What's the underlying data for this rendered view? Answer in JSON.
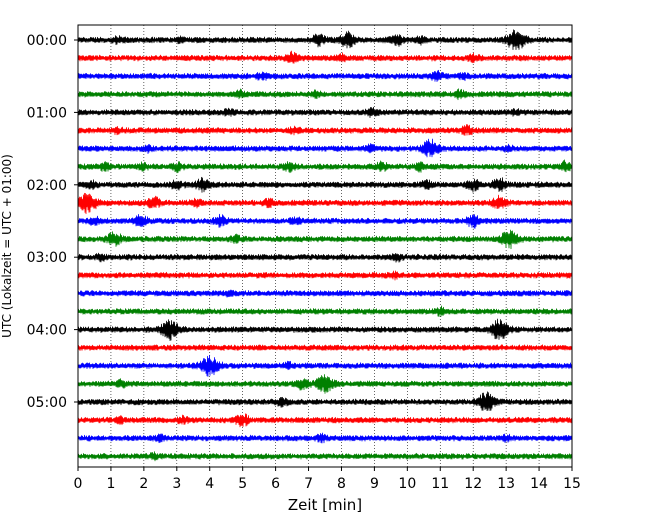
{
  "chart_data": {
    "type": "line",
    "title": "",
    "xlabel": "Zeit  [min]",
    "ylabel": "UTC (Lokalzeit = UTC + 01:00)",
    "xlim": [
      0,
      15
    ],
    "xticks": [
      0,
      1,
      2,
      3,
      4,
      5,
      6,
      7,
      8,
      9,
      10,
      11,
      12,
      13,
      14,
      15
    ],
    "xtick_labels": [
      "0",
      "1",
      "2",
      "3",
      "4",
      "5",
      "6",
      "7",
      "8",
      "9",
      "10",
      "11",
      "12",
      "13",
      "14",
      "15"
    ],
    "ytick_labels": [
      "00:00",
      "01:00",
      "02:00",
      "03:00",
      "04:00",
      "05:00"
    ],
    "ytick_rows": [
      0,
      4,
      8,
      12,
      16,
      20
    ],
    "row_minutes": 15,
    "grid": "vertical dotted",
    "colors": [
      "#000000",
      "#ff0000",
      "#0000ff",
      "#008000"
    ],
    "series": [
      {
        "start": "00:00",
        "color": "#000000",
        "events": [
          [
            1.2,
            0.25
          ],
          [
            3.1,
            0.15
          ],
          [
            7.3,
            0.45
          ],
          [
            8.2,
            0.65
          ],
          [
            9.7,
            0.4
          ],
          [
            10.4,
            0.25
          ],
          [
            13.3,
            0.9
          ]
        ]
      },
      {
        "start": "00:15",
        "color": "#ff0000",
        "events": [
          [
            6.5,
            0.45
          ],
          [
            8.0,
            0.25
          ],
          [
            12.0,
            0.3
          ]
        ]
      },
      {
        "start": "00:30",
        "color": "#0000ff",
        "events": [
          [
            5.6,
            0.25
          ],
          [
            10.9,
            0.35
          ],
          [
            11.7,
            0.2
          ]
        ]
      },
      {
        "start": "00:45",
        "color": "#008000",
        "events": [
          [
            4.9,
            0.25
          ],
          [
            7.2,
            0.2
          ],
          [
            11.6,
            0.3
          ]
        ]
      },
      {
        "start": "01:00",
        "color": "#000000",
        "events": [
          [
            4.6,
            0.25
          ],
          [
            8.9,
            0.3
          ],
          [
            13.3,
            0.15
          ]
        ]
      },
      {
        "start": "01:15",
        "color": "#ff0000",
        "events": [
          [
            1.2,
            0.2
          ],
          [
            6.6,
            0.25
          ],
          [
            11.8,
            0.35
          ]
        ]
      },
      {
        "start": "01:30",
        "color": "#0000ff",
        "events": [
          [
            2.1,
            0.25
          ],
          [
            8.9,
            0.25
          ],
          [
            10.7,
            0.75
          ],
          [
            13.1,
            0.2
          ]
        ]
      },
      {
        "start": "01:45",
        "color": "#008000",
        "events": [
          [
            0.8,
            0.3
          ],
          [
            2.0,
            0.25
          ],
          [
            3.0,
            0.35
          ],
          [
            6.4,
            0.35
          ],
          [
            9.2,
            0.35
          ],
          [
            10.4,
            0.3
          ],
          [
            14.8,
            0.4
          ]
        ]
      },
      {
        "start": "02:00",
        "color": "#000000",
        "events": [
          [
            0.4,
            0.25
          ],
          [
            3.0,
            0.35
          ],
          [
            3.8,
            0.5
          ],
          [
            10.6,
            0.3
          ],
          [
            12.0,
            0.45
          ],
          [
            12.8,
            0.55
          ]
        ]
      },
      {
        "start": "02:15",
        "color": "#ff0000",
        "events": [
          [
            0.3,
            0.85
          ],
          [
            2.3,
            0.45
          ],
          [
            3.6,
            0.3
          ],
          [
            5.8,
            0.3
          ],
          [
            12.8,
            0.5
          ]
        ]
      },
      {
        "start": "02:30",
        "color": "#0000ff",
        "events": [
          [
            0.5,
            0.3
          ],
          [
            1.9,
            0.45
          ],
          [
            4.3,
            0.45
          ],
          [
            6.6,
            0.3
          ],
          [
            12.0,
            0.5
          ]
        ]
      },
      {
        "start": "02:45",
        "color": "#008000",
        "events": [
          [
            1.1,
            0.55
          ],
          [
            4.8,
            0.25
          ],
          [
            13.1,
            0.75
          ]
        ]
      },
      {
        "start": "03:00",
        "color": "#000000",
        "events": [
          [
            0.7,
            0.2
          ],
          [
            9.7,
            0.25
          ]
        ]
      },
      {
        "start": "03:15",
        "color": "#ff0000",
        "events": [
          [
            9.6,
            0.2
          ]
        ]
      },
      {
        "start": "03:30",
        "color": "#0000ff",
        "events": [
          [
            4.6,
            0.15
          ]
        ]
      },
      {
        "start": "03:45",
        "color": "#008000",
        "events": [
          [
            11.0,
            0.3
          ]
        ]
      },
      {
        "start": "04:00",
        "color": "#000000",
        "events": [
          [
            2.8,
            0.85
          ],
          [
            12.8,
            0.85
          ]
        ]
      },
      {
        "start": "04:15",
        "color": "#ff0000",
        "events": []
      },
      {
        "start": "04:30",
        "color": "#0000ff",
        "events": [
          [
            4.0,
            0.85
          ],
          [
            6.4,
            0.2
          ]
        ]
      },
      {
        "start": "04:45",
        "color": "#008000",
        "events": [
          [
            1.3,
            0.25
          ],
          [
            6.8,
            0.4
          ],
          [
            7.5,
            0.75
          ]
        ]
      },
      {
        "start": "05:00",
        "color": "#000000",
        "events": [
          [
            6.2,
            0.3
          ],
          [
            12.4,
            0.8
          ]
        ]
      },
      {
        "start": "05:15",
        "color": "#ff0000",
        "events": [
          [
            1.3,
            0.2
          ],
          [
            3.2,
            0.25
          ],
          [
            5.0,
            0.5
          ]
        ]
      },
      {
        "start": "05:30",
        "color": "#0000ff",
        "events": [
          [
            2.5,
            0.2
          ],
          [
            7.4,
            0.25
          ],
          [
            13.0,
            0.2
          ]
        ]
      },
      {
        "start": "05:45",
        "color": "#008000",
        "events": [
          [
            2.3,
            0.2
          ]
        ]
      }
    ]
  }
}
